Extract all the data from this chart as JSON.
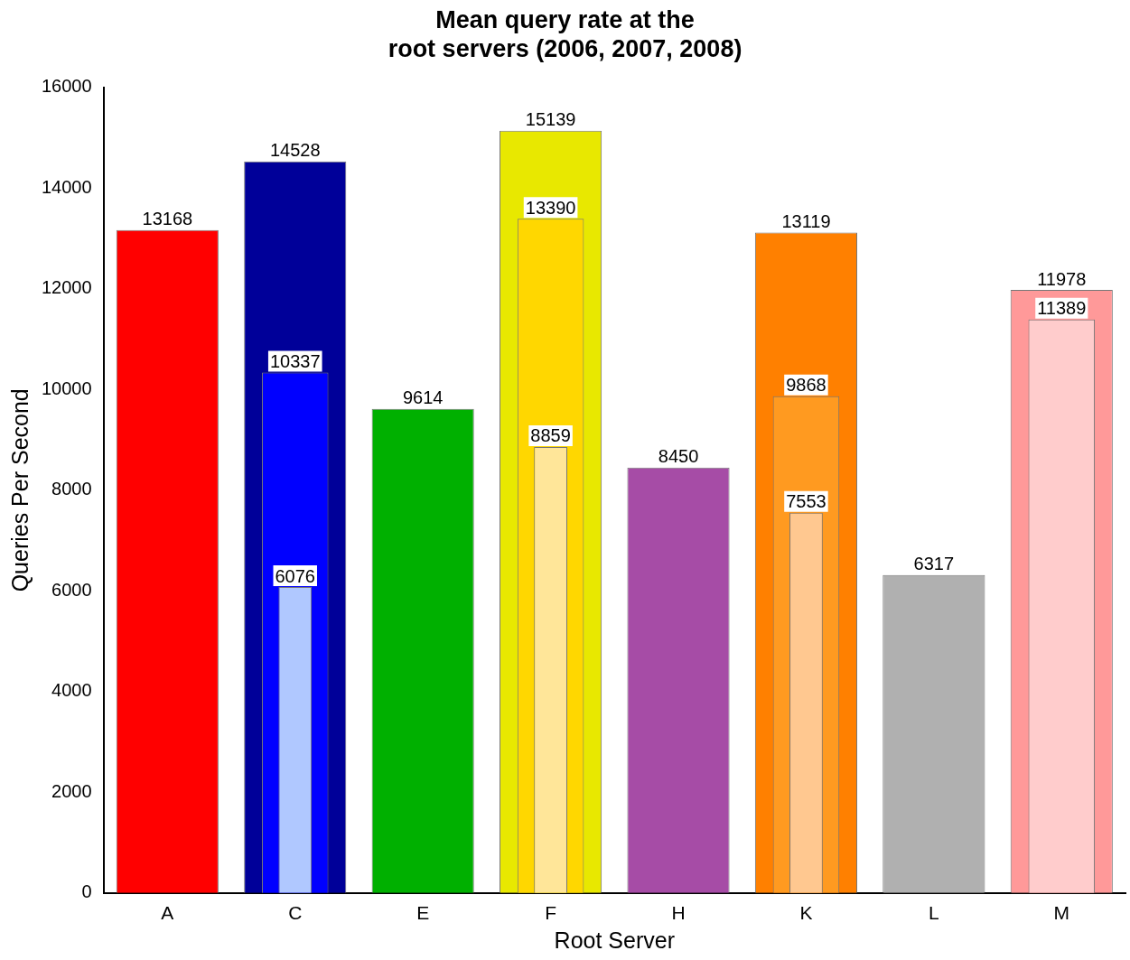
{
  "chart_data": {
    "type": "bar",
    "title": "Mean query rate at the\nroot servers (2006, 2007, 2008)",
    "xlabel": "Root Server",
    "ylabel": "Queries Per Second",
    "categories": [
      "A",
      "C",
      "E",
      "F",
      "H",
      "K",
      "L",
      "M"
    ],
    "series": [
      {
        "colors": [
          "#ff0000",
          "#000099",
          "#00b000",
          "#e8e800",
          "#a64ca6",
          "#ff8000",
          "#b0b0b0",
          "#ff9999"
        ],
        "values": [
          13168,
          14528,
          9614,
          15139,
          8450,
          13119,
          6317,
          11978
        ]
      },
      {
        "colors": [
          null,
          "#0000ff",
          null,
          "#ffd700",
          null,
          "#ff9a20",
          null,
          "#ffcccc"
        ],
        "values": [
          null,
          10337,
          null,
          13390,
          null,
          9868,
          null,
          11389
        ]
      },
      {
        "colors": [
          null,
          "#b0c8ff",
          null,
          "#ffe699",
          null,
          "#ffc890",
          null,
          null
        ],
        "values": [
          null,
          6076,
          null,
          8859,
          null,
          7553,
          null,
          null
        ]
      }
    ],
    "ylim": [
      0,
      16000
    ],
    "yticks": [
      0,
      2000,
      4000,
      6000,
      8000,
      10000,
      12000,
      14000,
      16000
    ],
    "grid": false,
    "legend": false,
    "data_labels": true
  }
}
